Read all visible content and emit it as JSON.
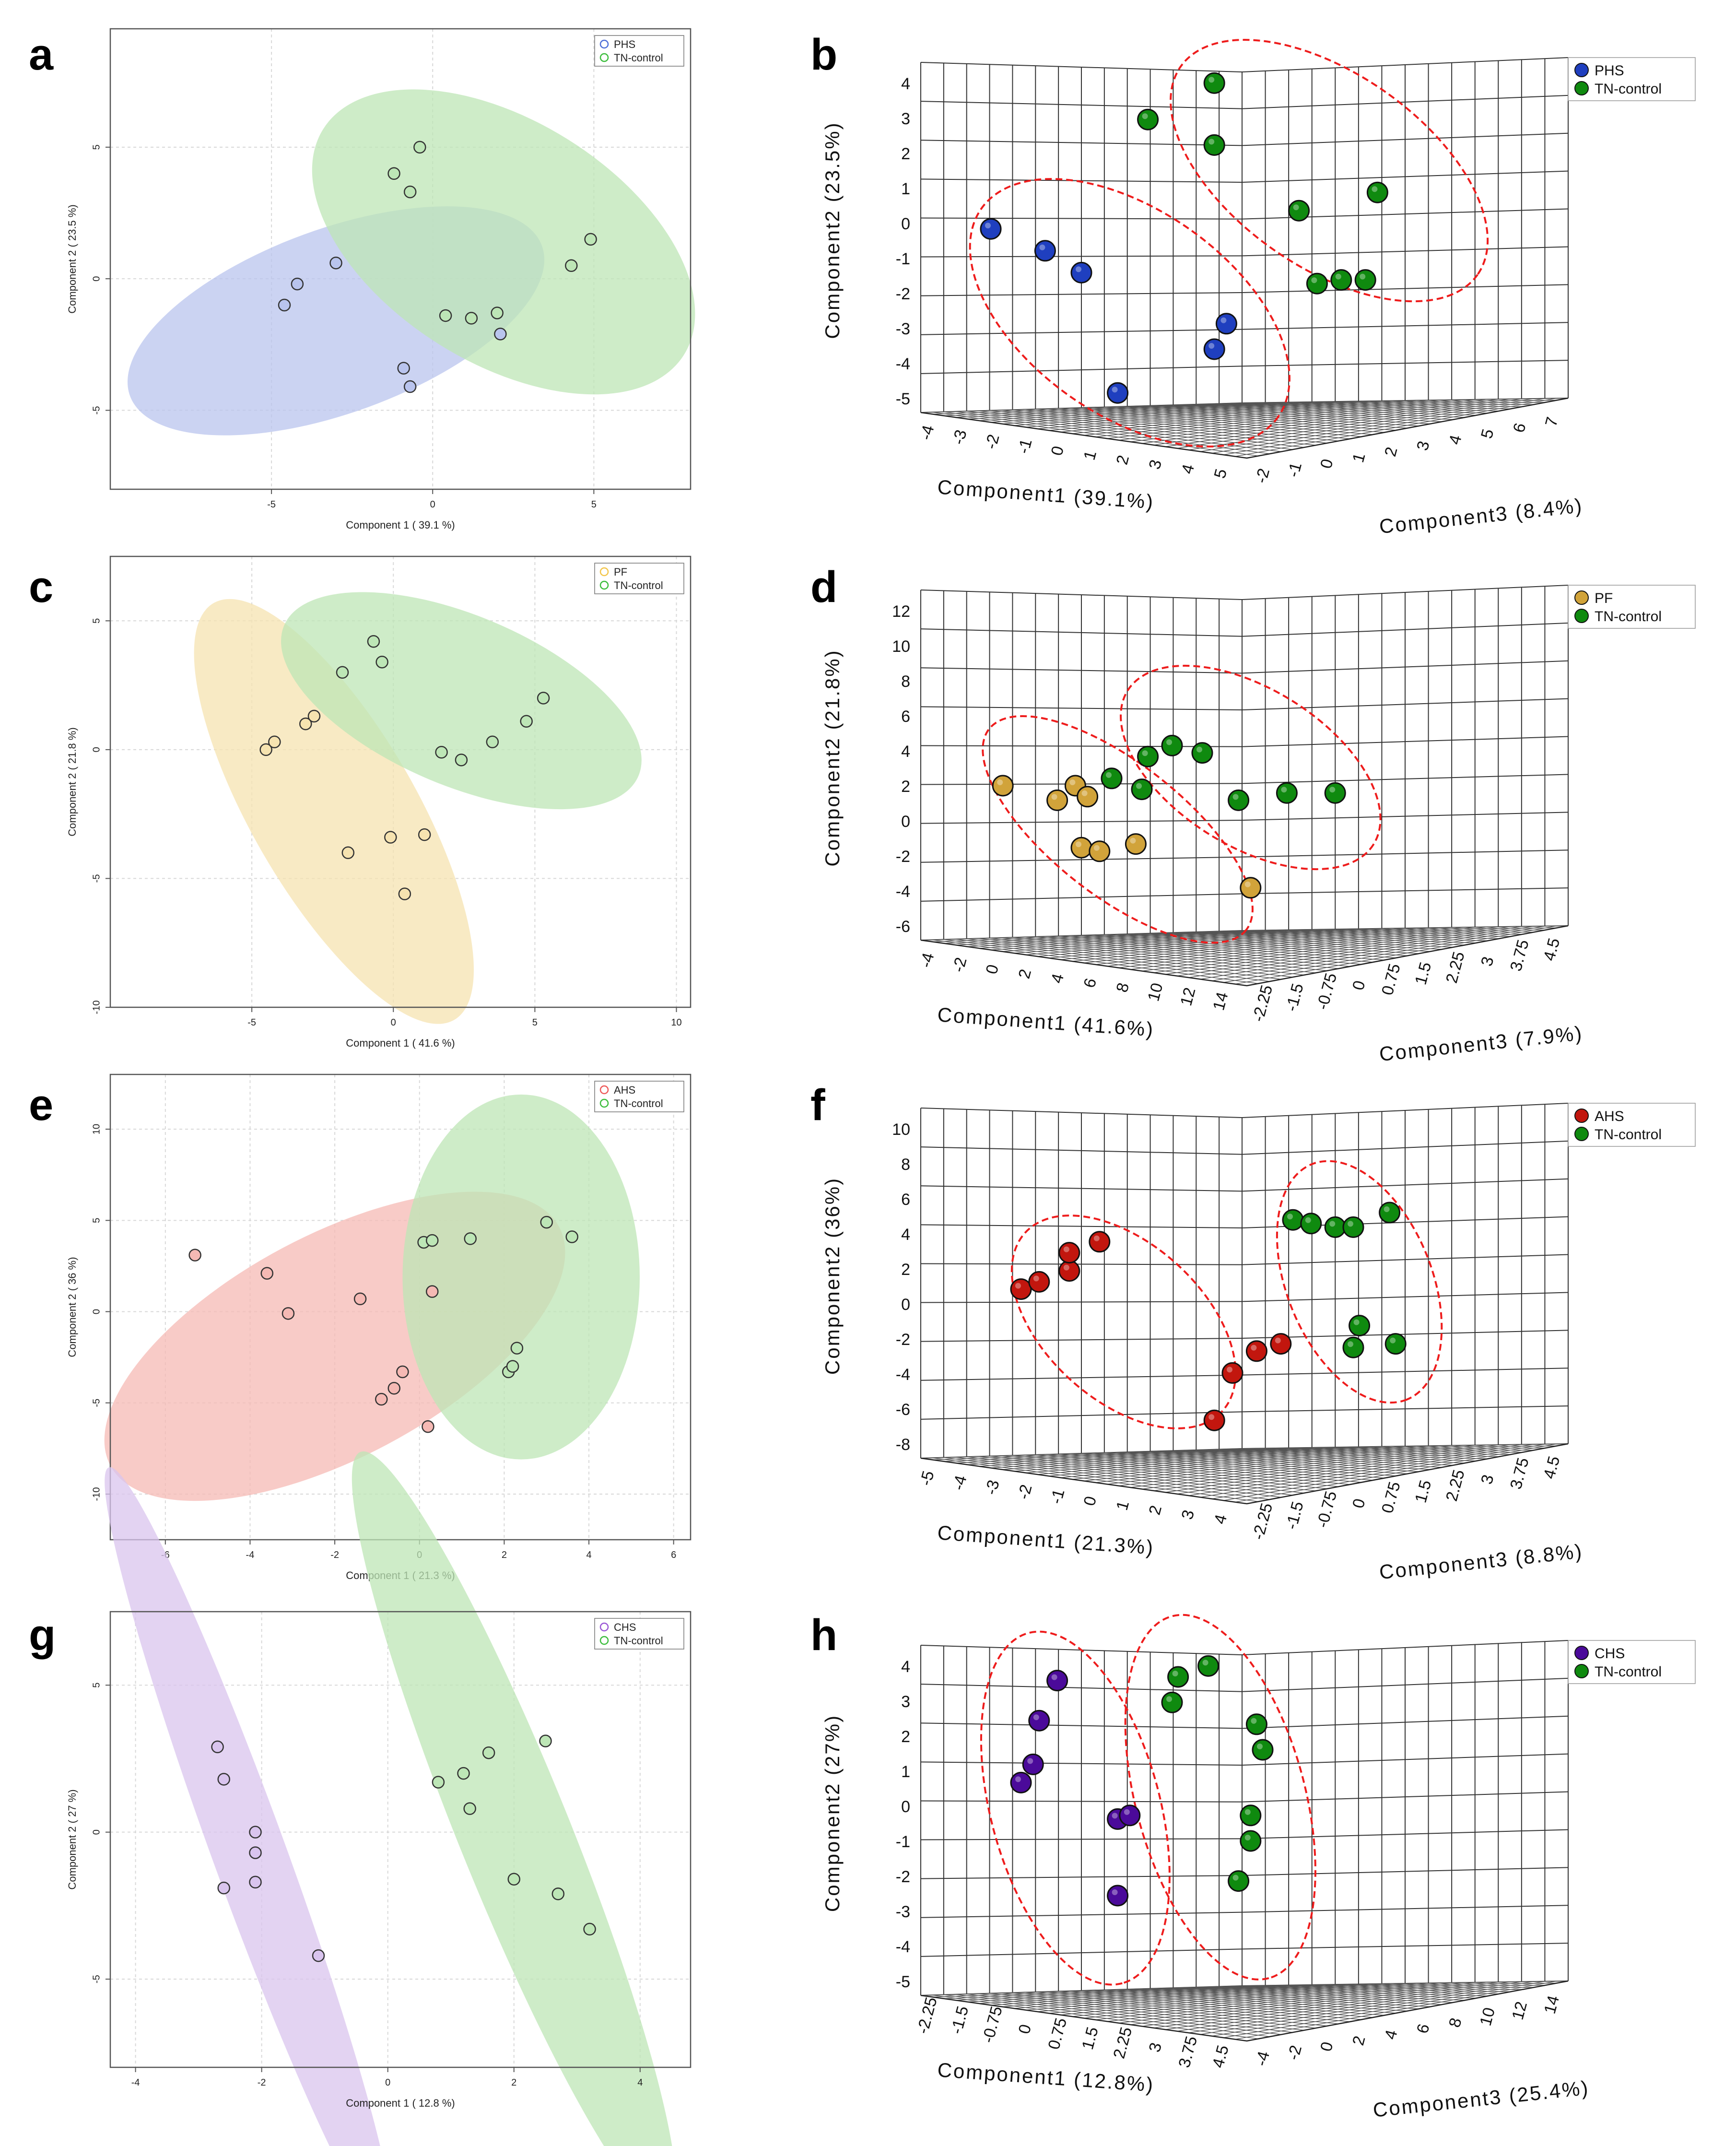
{
  "colors": {
    "PHS": "#4f6fd8",
    "PHS_fill": "#b9c4ee",
    "PF": "#f2c54b",
    "PF_fill": "#f6e3b0",
    "AHS": "#ee5a5a",
    "AHS_fill": "#f5b9b4",
    "CHS": "#9b58d6",
    "CHS_fill": "#d9c4ee",
    "TN": "#3dbd3d",
    "TN_fill": "#bde6b6",
    "dot3_blue": "#1f3fbf",
    "dot3_green": "#0f8a0f",
    "dot3_orange": "#d1a33a",
    "dot3_red": "#c2160e",
    "dot3_purple": "#4b0a9a",
    "ellipse3": "#ee1c1c"
  },
  "chart_data": [
    {
      "panel": "a",
      "type": "scatter",
      "xlabel": "Component 1 ( 39.1 %)",
      "ylabel": "Component 2 ( 23.5 %)",
      "xlim": [
        -10,
        8
      ],
      "ylim": [
        -8,
        9.5
      ],
      "xticks": [
        -5,
        0,
        5
      ],
      "yticks": [
        -5,
        0,
        5
      ],
      "legend": [
        "PHS",
        "TN-control"
      ],
      "series": [
        {
          "name": "PHS",
          "group": "PHS",
          "x": [
            -4.6,
            -4.2,
            -3.0,
            -0.9,
            -0.7,
            2.1
          ],
          "y": [
            -1.0,
            -0.2,
            0.6,
            -3.4,
            -4.1,
            -2.1
          ],
          "ellipse": {
            "cx": -3.0,
            "cy": -1.6,
            "rx": 6.8,
            "ry": 3.5,
            "angle": 20
          }
        },
        {
          "name": "TN-control",
          "group": "TN",
          "x": [
            -1.2,
            -0.7,
            -0.4,
            0.4,
            1.2,
            2.0,
            4.3,
            4.9
          ],
          "y": [
            4.0,
            3.3,
            5.0,
            -1.4,
            -1.5,
            -1.3,
            0.5,
            1.5
          ],
          "ellipse": {
            "cx": 2.2,
            "cy": 1.4,
            "rx": 6.6,
            "ry": 4.6,
            "angle": -32
          }
        }
      ]
    },
    {
      "panel": "c",
      "type": "scatter",
      "xlabel": "Component 1 ( 41.6 %)",
      "ylabel": "Component 2 ( 21.8 %)",
      "xlim": [
        -10,
        10.5
      ],
      "ylim": [
        -10,
        7.5
      ],
      "xticks": [
        -5,
        0,
        5,
        10
      ],
      "yticks": [
        -10,
        -5,
        0,
        5
      ],
      "legend": [
        "PF",
        "TN-control"
      ],
      "series": [
        {
          "name": "PF",
          "group": "PF",
          "x": [
            -4.5,
            -4.2,
            -3.1,
            -2.8,
            -1.6,
            -0.1,
            0.4,
            1.1
          ],
          "y": [
            0.0,
            0.3,
            1.0,
            1.3,
            -4.0,
            -3.4,
            -5.6,
            -3.3
          ],
          "ellipse": {
            "cx": -2.1,
            "cy": -2.4,
            "rx": 8.5,
            "ry": 3.2,
            "angle": -60
          }
        },
        {
          "name": "TN-control",
          "group": "TN",
          "x": [
            -1.8,
            -0.7,
            -0.4,
            1.7,
            2.4,
            3.5,
            4.7,
            5.3
          ],
          "y": [
            3.0,
            4.2,
            3.4,
            -0.1,
            -0.4,
            0.3,
            1.1,
            2.0
          ],
          "ellipse": {
            "cx": 2.4,
            "cy": 1.9,
            "rx": 6.8,
            "ry": 3.3,
            "angle": -23
          }
        }
      ]
    },
    {
      "panel": "e",
      "type": "scatter",
      "xlabel": "Component 1 ( 21.3 %)",
      "ylabel": "Component 2 ( 36 %)",
      "xlim": [
        -7.3,
        6.4
      ],
      "ylim": [
        -12.5,
        13
      ],
      "xticks": [
        -6,
        -4,
        -2,
        0,
        2,
        4,
        6
      ],
      "yticks": [
        -10,
        -5,
        0,
        5,
        10
      ],
      "legend": [
        "AHS",
        "TN-control"
      ],
      "series": [
        {
          "name": "AHS",
          "group": "AHS",
          "x": [
            -5.3,
            -3.6,
            -3.1,
            -1.4,
            -0.9,
            -0.6,
            -0.4,
            0.2,
            0.3
          ],
          "y": [
            3.1,
            2.1,
            -0.1,
            0.7,
            -4.8,
            -4.2,
            -3.3,
            -6.3,
            1.1
          ],
          "ellipse": {
            "cx": -2.0,
            "cy": -1.9,
            "rx": 6.0,
            "ry": 6.1,
            "angle": 28
          }
        },
        {
          "name": "TN-control",
          "group": "TN",
          "x": [
            0.1,
            0.3,
            1.2,
            2.1,
            2.2,
            2.3,
            3.0,
            3.6
          ],
          "y": [
            3.8,
            3.9,
            4.0,
            -3.3,
            -3.0,
            -2.0,
            4.9,
            4.1
          ],
          "ellipse": {
            "cx": 2.4,
            "cy": 1.9,
            "rx": 2.8,
            "ry": 10.0,
            "angle": 0
          }
        }
      ]
    },
    {
      "panel": "g",
      "type": "scatter",
      "xlabel": "Component 1 ( 12.8 %)",
      "ylabel": "Component 2 ( 27 %)",
      "xlim": [
        -4.4,
        4.8
      ],
      "ylim": [
        -8,
        7.5
      ],
      "xticks": [
        -4,
        -2,
        0,
        2,
        4
      ],
      "yticks": [
        -5,
        0,
        5
      ],
      "legend": [
        "CHS",
        "TN-control"
      ],
      "series": [
        {
          "name": "CHS",
          "group": "CHS",
          "x": [
            -2.7,
            -2.6,
            -2.6,
            -2.1,
            -2.1,
            -2.1,
            -1.1
          ],
          "y": [
            2.9,
            1.8,
            -1.9,
            0.0,
            -0.7,
            -1.7,
            -4.2
          ],
          "ellipse": {
            "cx": -2.2,
            "cy": -0.7,
            "rx": 6.5,
            "ry": 1.25,
            "angle": -70
          }
        },
        {
          "name": "TN-control",
          "group": "TN",
          "x": [
            0.8,
            1.2,
            1.3,
            1.6,
            2.0,
            2.5,
            2.7,
            3.2
          ],
          "y": [
            1.7,
            2.0,
            0.8,
            2.7,
            -1.6,
            3.1,
            -2.1,
            -3.3
          ],
          "ellipse": {
            "cx": 2.0,
            "cy": 0.0,
            "rx": 6.5,
            "ry": 1.9,
            "angle": -68
          }
        }
      ]
    },
    {
      "panel": "b",
      "type": "scatter3d",
      "xlabel": "Component1 (39.1%)",
      "ylabel": "Component2 (23.5%)",
      "zlabel": "Component3 (8.4%)",
      "yticks": [
        "4",
        "3",
        "2",
        "1",
        "0",
        "-1",
        "-2",
        "-3",
        "-4",
        "-5"
      ],
      "xticks": [
        "-4",
        "-3",
        "-2",
        "-1",
        "0",
        "1",
        "2",
        "3",
        "4",
        "5"
      ],
      "zticks": [
        "-2",
        "-1",
        "0",
        "1",
        "2",
        "3",
        "4",
        "5",
        "6",
        "7"
      ],
      "legend": [
        "PHS",
        "TN-control"
      ],
      "groups": [
        "dot3_blue",
        "dot3_green"
      ],
      "points": [
        {
          "g": 0,
          "u": 0.1,
          "v": 0.47
        },
        {
          "g": 0,
          "u": 0.19,
          "v": 0.53
        },
        {
          "g": 0,
          "u": 0.25,
          "v": 0.59
        },
        {
          "g": 0,
          "u": 0.49,
          "v": 0.73
        },
        {
          "g": 0,
          "u": 0.47,
          "v": 0.8
        },
        {
          "g": 0,
          "u": 0.31,
          "v": 0.92
        },
        {
          "g": 1,
          "u": 0.47,
          "v": 0.07
        },
        {
          "g": 1,
          "u": 0.36,
          "v": 0.17
        },
        {
          "g": 1,
          "u": 0.47,
          "v": 0.24
        },
        {
          "g": 1,
          "u": 0.61,
          "v": 0.42
        },
        {
          "g": 1,
          "u": 0.74,
          "v": 0.37
        },
        {
          "g": 1,
          "u": 0.64,
          "v": 0.62
        },
        {
          "g": 1,
          "u": 0.68,
          "v": 0.61
        },
        {
          "g": 1,
          "u": 0.72,
          "v": 0.61
        }
      ],
      "ellipses": [
        {
          "u": 0.33,
          "v": 0.7,
          "ru": 0.3,
          "rv": 0.17,
          "angle": 35
        },
        {
          "u": 0.66,
          "v": 0.31,
          "ru": 0.3,
          "rv": 0.16,
          "angle": 35
        }
      ]
    },
    {
      "panel": "d",
      "type": "scatter3d",
      "xlabel": "Component1 (41.6%)",
      "ylabel": "Component2 (21.8%)",
      "zlabel": "Component3 (7.9%)",
      "yticks": [
        "12",
        "10",
        "8",
        "6",
        "4",
        "2",
        "0",
        "-2",
        "-4",
        "-6"
      ],
      "xticks": [
        "-4",
        "-2",
        "0",
        "2",
        "4",
        "6",
        "8",
        "10",
        "12",
        "14"
      ],
      "zticks": [
        "-2.25",
        "-1.5",
        "-0.75",
        "0",
        "0.75",
        "1.5",
        "2.25",
        "3",
        "3.75",
        "4.5"
      ],
      "legend": [
        "PF",
        "TN-control"
      ],
      "groups": [
        "dot3_orange",
        "dot3_green"
      ],
      "points": [
        {
          "g": 0,
          "u": 0.12,
          "v": 0.55
        },
        {
          "g": 0,
          "u": 0.24,
          "v": 0.55
        },
        {
          "g": 0,
          "u": 0.26,
          "v": 0.58
        },
        {
          "g": 0,
          "u": 0.21,
          "v": 0.59
        },
        {
          "g": 0,
          "u": 0.25,
          "v": 0.72
        },
        {
          "g": 0,
          "u": 0.28,
          "v": 0.73
        },
        {
          "g": 0,
          "u": 0.34,
          "v": 0.71
        },
        {
          "g": 0,
          "u": 0.53,
          "v": 0.83
        },
        {
          "g": 1,
          "u": 0.3,
          "v": 0.53
        },
        {
          "g": 1,
          "u": 0.36,
          "v": 0.47
        },
        {
          "g": 1,
          "u": 0.4,
          "v": 0.44
        },
        {
          "g": 1,
          "u": 0.45,
          "v": 0.46
        },
        {
          "g": 1,
          "u": 0.35,
          "v": 0.56
        },
        {
          "g": 1,
          "u": 0.51,
          "v": 0.59
        },
        {
          "g": 1,
          "u": 0.59,
          "v": 0.57
        },
        {
          "g": 1,
          "u": 0.67,
          "v": 0.57
        }
      ],
      "ellipses": [
        {
          "u": 0.31,
          "v": 0.67,
          "ru": 0.27,
          "rv": 0.11,
          "angle": 38
        },
        {
          "u": 0.53,
          "v": 0.5,
          "ru": 0.24,
          "rv": 0.13,
          "angle": 32
        }
      ]
    },
    {
      "panel": "f",
      "type": "scatter3d",
      "xlabel": "Component1 (21.3%)",
      "ylabel": "Component2 (36%)",
      "zlabel": "Component3 (8.8%)",
      "yticks": [
        "10",
        "8",
        "6",
        "4",
        "2",
        "0",
        "-2",
        "-4",
        "-6",
        "-8"
      ],
      "xticks": [
        "-5",
        "-4",
        "-3",
        "-2",
        "-1",
        "0",
        "1",
        "2",
        "3",
        "4"
      ],
      "zticks": [
        "-2.25",
        "-1.5",
        "-0.75",
        "0",
        "0.75",
        "1.5",
        "2.25",
        "3",
        "3.75",
        "4.5"
      ],
      "legend": [
        "AHS",
        "TN-control"
      ],
      "groups": [
        "dot3_red",
        "dot3_green"
      ],
      "points": [
        {
          "g": 0,
          "u": 0.15,
          "v": 0.51
        },
        {
          "g": 0,
          "u": 0.18,
          "v": 0.49
        },
        {
          "g": 0,
          "u": 0.23,
          "v": 0.46
        },
        {
          "g": 0,
          "u": 0.23,
          "v": 0.41
        },
        {
          "g": 0,
          "u": 0.28,
          "v": 0.38
        },
        {
          "g": 0,
          "u": 0.5,
          "v": 0.74
        },
        {
          "g": 0,
          "u": 0.54,
          "v": 0.68
        },
        {
          "g": 0,
          "u": 0.58,
          "v": 0.66
        },
        {
          "g": 0,
          "u": 0.47,
          "v": 0.87
        },
        {
          "g": 1,
          "u": 0.6,
          "v": 0.32
        },
        {
          "g": 1,
          "u": 0.63,
          "v": 0.33
        },
        {
          "g": 1,
          "u": 0.67,
          "v": 0.34
        },
        {
          "g": 1,
          "u": 0.7,
          "v": 0.34
        },
        {
          "g": 1,
          "u": 0.76,
          "v": 0.3
        },
        {
          "g": 1,
          "u": 0.71,
          "v": 0.61
        },
        {
          "g": 1,
          "u": 0.7,
          "v": 0.67
        },
        {
          "g": 1,
          "u": 0.77,
          "v": 0.66
        }
      ],
      "ellipses": [
        {
          "u": 0.32,
          "v": 0.6,
          "ru": 0.22,
          "rv": 0.13,
          "angle": 42
        },
        {
          "u": 0.71,
          "v": 0.49,
          "ru": 0.21,
          "rv": 0.12,
          "angle": 68
        }
      ]
    },
    {
      "panel": "h",
      "type": "scatter3d",
      "xlabel": "Component1 (12.8%)",
      "ylabel": "Component2 (27%)",
      "zlabel": "Component3 (25.4%)",
      "yticks": [
        "4",
        "3",
        "2",
        "1",
        "0",
        "-1",
        "-2",
        "-3",
        "-4",
        "-5"
      ],
      "xticks": [
        "-2.25",
        "-1.5",
        "-0.75",
        "0",
        "0.75",
        "1.5",
        "2.25",
        "3",
        "3.75",
        "4.5"
      ],
      "zticks": [
        "-4",
        "-2",
        "0",
        "2",
        "4",
        "6",
        "8",
        "10",
        "12",
        "14"
      ],
      "legend": [
        "CHS",
        "TN-control"
      ],
      "groups": [
        "dot3_purple",
        "dot3_green"
      ],
      "points": [
        {
          "g": 0,
          "u": 0.21,
          "v": 0.11
        },
        {
          "g": 0,
          "u": 0.18,
          "v": 0.22
        },
        {
          "g": 0,
          "u": 0.17,
          "v": 0.34
        },
        {
          "g": 0,
          "u": 0.15,
          "v": 0.39
        },
        {
          "g": 0,
          "u": 0.31,
          "v": 0.49
        },
        {
          "g": 0,
          "u": 0.33,
          "v": 0.48
        },
        {
          "g": 0,
          "u": 0.31,
          "v": 0.7
        },
        {
          "g": 1,
          "u": 0.41,
          "v": 0.1
        },
        {
          "g": 1,
          "u": 0.46,
          "v": 0.07
        },
        {
          "g": 1,
          "u": 0.4,
          "v": 0.17
        },
        {
          "g": 1,
          "u": 0.54,
          "v": 0.23
        },
        {
          "g": 1,
          "u": 0.55,
          "v": 0.3
        },
        {
          "g": 1,
          "u": 0.53,
          "v": 0.48
        },
        {
          "g": 1,
          "u": 0.53,
          "v": 0.55
        },
        {
          "g": 1,
          "u": 0.51,
          "v": 0.66
        }
      ],
      "ellipses": [
        {
          "u": 0.24,
          "v": 0.46,
          "ru": 0.3,
          "rv": 0.14,
          "angle": 75
        },
        {
          "u": 0.48,
          "v": 0.43,
          "ru": 0.31,
          "rv": 0.14,
          "angle": 75
        }
      ]
    }
  ],
  "panel_letters": [
    "a",
    "b",
    "c",
    "d",
    "e",
    "f",
    "g",
    "h"
  ]
}
